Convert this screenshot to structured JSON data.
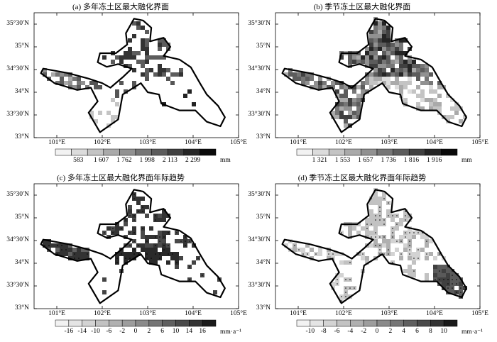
{
  "panels": [
    {
      "id": "a",
      "title": "(a) 多年冻土区最大融化界面",
      "colorbar": {
        "ticks": [
          "583",
          "1 607",
          "1 762",
          "1 998",
          "2 113",
          "2 299"
        ],
        "unit": "mm",
        "colors": [
          "#f2f2f2",
          "#dcdcdc",
          "#c4c4c4",
          "#aaaaaa",
          "#919191",
          "#767676",
          "#5c5c5c",
          "#404040",
          "#252525",
          "#0a0a0a"
        ]
      },
      "pattern": "sparse-north",
      "stipple": false
    },
    {
      "id": "b",
      "title": "(b) 季节冻土区最大融化界面",
      "colorbar": {
        "ticks": [
          "1 321",
          "1 553",
          "1 657",
          "1 736",
          "1 816",
          "1 916"
        ],
        "unit": "mm",
        "colors": [
          "#f2f2f2",
          "#dcdcdc",
          "#c4c4c4",
          "#aaaaaa",
          "#919191",
          "#767676",
          "#5c5c5c",
          "#404040",
          "#252525",
          "#0a0a0a"
        ]
      },
      "pattern": "dense",
      "stipple": false
    },
    {
      "id": "c",
      "title": "(c) 多年冻土区最大融化界面年际趋势",
      "colorbar": {
        "ticks": [
          "-16",
          "-14",
          "-10",
          "-6",
          "-2",
          "0",
          "2",
          "6",
          "10",
          "14",
          "16"
        ],
        "unit": "mm·a⁻¹",
        "colors": [
          "#f2f2f2",
          "#e4e4e4",
          "#d3d3d3",
          "#c2c2c2",
          "#b0b0b0",
          "#9d9d9d",
          "#8a8a8a",
          "#757575",
          "#606060",
          "#4a4a4a",
          "#333333",
          "#1a1a1a"
        ]
      },
      "pattern": "sparse-north-dark",
      "stipple": true
    },
    {
      "id": "d",
      "title": "(d) 季节冻土区最大融化界面年际趋势",
      "colorbar": {
        "ticks": [
          "-10",
          "-8",
          "-6",
          "-4",
          "-2",
          "0",
          "2",
          "4",
          "6",
          "8",
          "10"
        ],
        "unit": "mm·a⁻¹",
        "colors": [
          "#f2f2f2",
          "#e4e4e4",
          "#d3d3d3",
          "#c2c2c2",
          "#b0b0b0",
          "#9d9d9d",
          "#8a8a8a",
          "#757575",
          "#606060",
          "#4a4a4a",
          "#333333",
          "#1a1a1a"
        ]
      },
      "pattern": "light-east-dark",
      "stipple": true
    }
  ],
  "axes": {
    "lat_labels": [
      "35°30′N",
      "35°N",
      "34°30′N",
      "34°N",
      "33°30′N",
      "33°N"
    ],
    "lon_labels": [
      "101°E",
      "102°E",
      "103°E",
      "104°E",
      "105°E"
    ]
  }
}
